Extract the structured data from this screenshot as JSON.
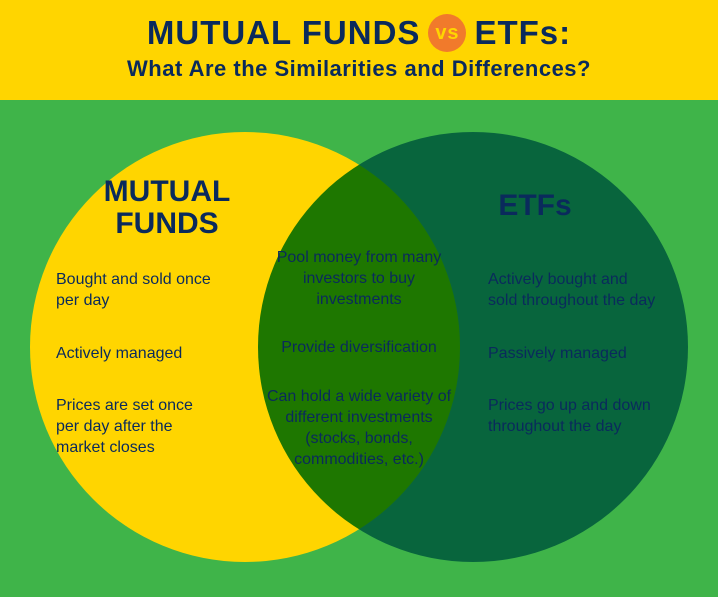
{
  "colors": {
    "header_bg": "#ffd500",
    "body_bg": "#3fb449",
    "title_text": "#0a2a5c",
    "subtitle_text": "#0a2a5c",
    "vs_bg": "#f17a2b",
    "vs_text": "#ffd500",
    "left_circle": "#ffd500",
    "right_circle": "#1e8fd5",
    "label_text": "#0a2a5c",
    "item_text": "#0a2a5c"
  },
  "sizes": {
    "title_font": 33,
    "subtitle_font": 22,
    "vs_diameter": 38,
    "vs_font": 20,
    "circle_diameter": 430,
    "label_font": 30,
    "item_font": 16
  },
  "header": {
    "title_left": "MUTUAL FUNDS",
    "vs": "vs",
    "title_right": "ETFs:",
    "subtitle": "What Are the Similarities and Differences?"
  },
  "venn": {
    "left_label": "MUTUAL FUNDS",
    "right_label": "ETFs",
    "left_items": [
      "Bought and sold once per day",
      "Actively managed",
      "Prices are set once per day after the market closes"
    ],
    "center_items": [
      "Pool money from many investors to buy investments",
      "Provide diversification",
      "Can hold a wide variety of different investments (stocks, bonds, commodities, etc.)"
    ],
    "right_items": [
      "Actively bought and sold throughout the day",
      "Passively managed",
      "Prices go up and down throughout the day"
    ]
  }
}
